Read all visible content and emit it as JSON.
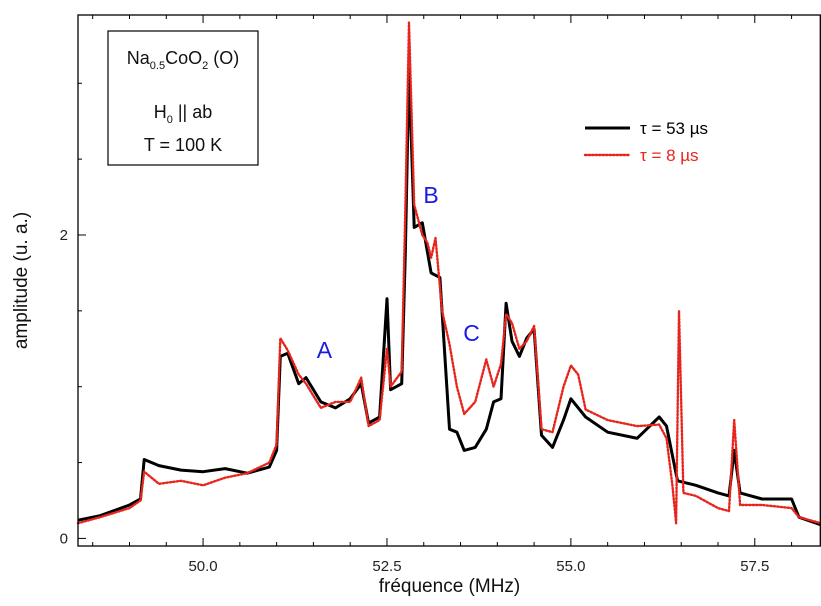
{
  "chart_data": {
    "type": "line",
    "title": "",
    "xlabel": "fréquence (MHz)",
    "ylabel": "amplitude (u. a.)",
    "xlim": [
      48.3,
      58.4
    ],
    "ylim": [
      -0.05,
      3.45
    ],
    "x_ticks": [
      50.0,
      52.5,
      55.0,
      57.5
    ],
    "x_tick_labels": [
      "50.0",
      "52.5",
      "55.0",
      "57.5"
    ],
    "y_ticks": [
      0,
      2
    ],
    "y_tick_labels": [
      "0",
      "2"
    ],
    "grid": false,
    "legend_position": "top-right",
    "series": [
      {
        "name": "τ = 53 µs",
        "color": "#000000",
        "style": "solid",
        "points": [
          [
            48.3,
            0.12
          ],
          [
            48.6,
            0.15
          ],
          [
            49.0,
            0.22
          ],
          [
            49.15,
            0.26
          ],
          [
            49.2,
            0.52
          ],
          [
            49.4,
            0.48
          ],
          [
            49.7,
            0.45
          ],
          [
            50.0,
            0.44
          ],
          [
            50.3,
            0.46
          ],
          [
            50.6,
            0.43
          ],
          [
            50.9,
            0.47
          ],
          [
            51.0,
            0.58
          ],
          [
            51.05,
            1.2
          ],
          [
            51.15,
            1.22
          ],
          [
            51.3,
            1.02
          ],
          [
            51.4,
            1.06
          ],
          [
            51.6,
            0.9
          ],
          [
            51.8,
            0.86
          ],
          [
            52.0,
            0.92
          ],
          [
            52.15,
            1.02
          ],
          [
            52.25,
            0.76
          ],
          [
            52.4,
            0.8
          ],
          [
            52.5,
            1.58
          ],
          [
            52.55,
            0.98
          ],
          [
            52.7,
            1.02
          ],
          [
            52.75,
            1.9
          ],
          [
            52.8,
            3.1
          ],
          [
            52.87,
            2.05
          ],
          [
            52.98,
            2.08
          ],
          [
            53.1,
            1.75
          ],
          [
            53.22,
            1.72
          ],
          [
            53.35,
            0.72
          ],
          [
            53.45,
            0.7
          ],
          [
            53.55,
            0.58
          ],
          [
            53.7,
            0.6
          ],
          [
            53.85,
            0.72
          ],
          [
            53.95,
            0.9
          ],
          [
            54.05,
            0.92
          ],
          [
            54.12,
            1.55
          ],
          [
            54.2,
            1.3
          ],
          [
            54.3,
            1.2
          ],
          [
            54.4,
            1.32
          ],
          [
            54.5,
            1.38
          ],
          [
            54.6,
            0.68
          ],
          [
            54.75,
            0.6
          ],
          [
            54.9,
            0.78
          ],
          [
            55.0,
            0.92
          ],
          [
            55.2,
            0.8
          ],
          [
            55.5,
            0.7
          ],
          [
            55.9,
            0.66
          ],
          [
            56.2,
            0.8
          ],
          [
            56.3,
            0.74
          ],
          [
            56.45,
            0.38
          ],
          [
            56.7,
            0.35
          ],
          [
            57.0,
            0.3
          ],
          [
            57.15,
            0.28
          ],
          [
            57.22,
            0.58
          ],
          [
            57.3,
            0.3
          ],
          [
            57.6,
            0.26
          ],
          [
            58.0,
            0.26
          ],
          [
            58.1,
            0.14
          ],
          [
            58.4,
            0.09
          ]
        ]
      },
      {
        "name": "τ = 8 µs",
        "color": "#e8251c",
        "style": "dotted",
        "points": [
          [
            48.3,
            0.1
          ],
          [
            48.6,
            0.14
          ],
          [
            49.0,
            0.2
          ],
          [
            49.15,
            0.25
          ],
          [
            49.2,
            0.44
          ],
          [
            49.4,
            0.36
          ],
          [
            49.7,
            0.38
          ],
          [
            50.0,
            0.35
          ],
          [
            50.3,
            0.4
          ],
          [
            50.6,
            0.43
          ],
          [
            50.9,
            0.5
          ],
          [
            51.0,
            0.62
          ],
          [
            51.05,
            1.32
          ],
          [
            51.15,
            1.24
          ],
          [
            51.3,
            1.08
          ],
          [
            51.4,
            1.02
          ],
          [
            51.6,
            0.86
          ],
          [
            51.8,
            0.9
          ],
          [
            52.0,
            0.9
          ],
          [
            52.15,
            1.06
          ],
          [
            52.25,
            0.74
          ],
          [
            52.4,
            0.78
          ],
          [
            52.5,
            1.25
          ],
          [
            52.55,
            1.0
          ],
          [
            52.7,
            1.1
          ],
          [
            52.75,
            2.2
          ],
          [
            52.8,
            3.4
          ],
          [
            52.87,
            2.2
          ],
          [
            52.98,
            2.0
          ],
          [
            53.05,
            1.95
          ],
          [
            53.1,
            1.85
          ],
          [
            53.16,
            1.98
          ],
          [
            53.25,
            1.5
          ],
          [
            53.35,
            1.28
          ],
          [
            53.45,
            1.0
          ],
          [
            53.55,
            0.82
          ],
          [
            53.7,
            0.9
          ],
          [
            53.85,
            1.18
          ],
          [
            53.95,
            1.0
          ],
          [
            54.05,
            1.15
          ],
          [
            54.12,
            1.48
          ],
          [
            54.2,
            1.42
          ],
          [
            54.3,
            1.25
          ],
          [
            54.4,
            1.3
          ],
          [
            54.5,
            1.4
          ],
          [
            54.6,
            0.72
          ],
          [
            54.75,
            0.7
          ],
          [
            54.9,
            1.0
          ],
          [
            55.0,
            1.14
          ],
          [
            55.1,
            1.08
          ],
          [
            55.2,
            0.85
          ],
          [
            55.5,
            0.78
          ],
          [
            55.9,
            0.74
          ],
          [
            56.2,
            0.75
          ],
          [
            56.3,
            0.66
          ],
          [
            56.38,
            0.35
          ],
          [
            56.43,
            0.1
          ],
          [
            56.47,
            1.5
          ],
          [
            56.53,
            0.3
          ],
          [
            56.7,
            0.28
          ],
          [
            57.0,
            0.2
          ],
          [
            57.15,
            0.18
          ],
          [
            57.22,
            0.78
          ],
          [
            57.3,
            0.22
          ],
          [
            57.6,
            0.22
          ],
          [
            58.0,
            0.2
          ],
          [
            58.1,
            0.14
          ],
          [
            58.4,
            0.1
          ]
        ]
      }
    ],
    "annotations": [
      {
        "text": "A",
        "x": 51.65,
        "y": 1.19
      },
      {
        "text": "B",
        "x": 53.1,
        "y": 2.21
      },
      {
        "text": "C",
        "x": 53.65,
        "y": 1.3
      }
    ],
    "info_box": {
      "formula_main1": "Na",
      "formula_sub1": "0.5",
      "formula_main2": "CoO",
      "formula_sub2": "2",
      "formula_suffix": " (O)",
      "field_main": "H",
      "field_sub": "0",
      "field_suffix": " || ab",
      "temperature": "T = 100 K"
    }
  }
}
